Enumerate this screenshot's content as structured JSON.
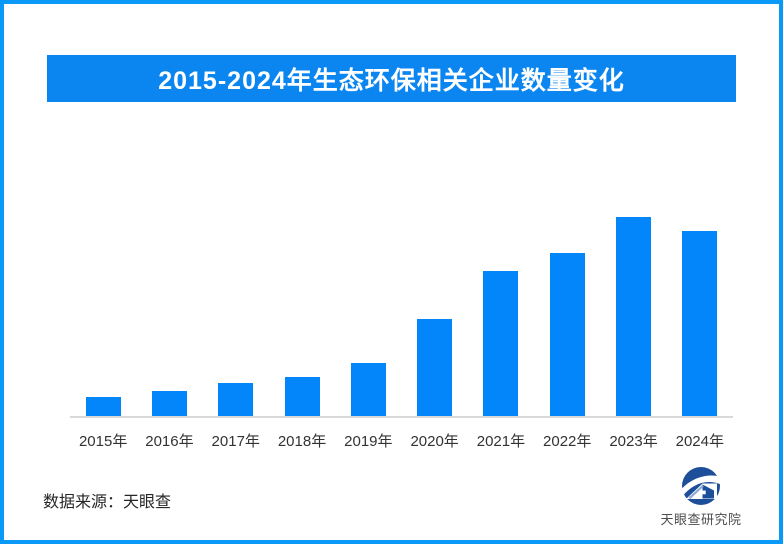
{
  "page": {
    "border_color": "#0a99f6",
    "background_color": "#ffffff"
  },
  "header": {
    "title": "2015-2024年生态环保相关企业数量变化",
    "banner_color": "#0b86f0",
    "title_color": "#ffffff"
  },
  "chart_data": {
    "type": "bar",
    "title": "2015-2024年生态环保相关企业数量变化",
    "categories": [
      "2015年",
      "2016年",
      "2017年",
      "2018年",
      "2019年",
      "2020年",
      "2021年",
      "2022年",
      "2023年",
      "2024年"
    ],
    "values": [
      10,
      13,
      17,
      20,
      27,
      49,
      73,
      82,
      100,
      93
    ],
    "xlabel": "",
    "ylabel": "",
    "ylim": [
      0,
      110
    ],
    "grid": false,
    "legend": false,
    "value_labels_shown": false,
    "y_axis_shown": false,
    "bar_color": "#0386f9",
    "axis_line_color": "#d9d9d9",
    "tick_label_color": "#333333"
  },
  "footer": {
    "source_text": "数据来源：天眼查",
    "logo_caption": "天眼查研究院",
    "logo_primary_color": "#1d4e99",
    "logo_roof_color": "#8fa9d6"
  }
}
